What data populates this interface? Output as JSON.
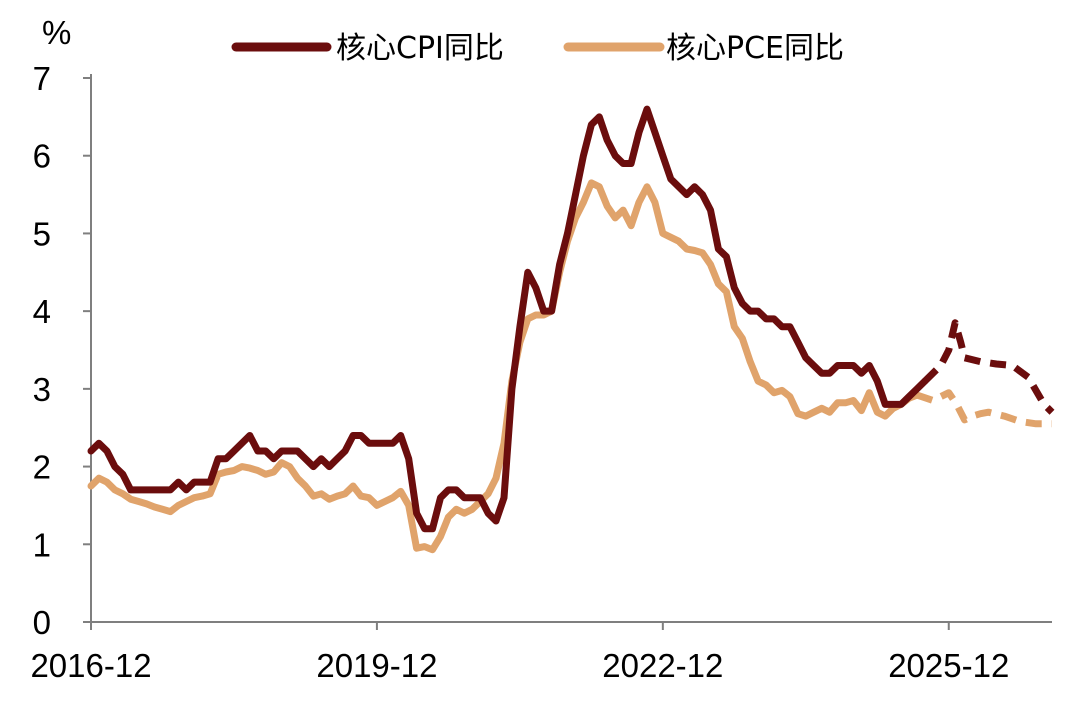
{
  "chart_data": {
    "type": "line",
    "unit_label": "%",
    "ylim": [
      0,
      7
    ],
    "y_ticks": [
      0,
      1,
      2,
      3,
      4,
      5,
      6,
      7
    ],
    "x_tick_labels": [
      "2016-12",
      "2019-12",
      "2022-12",
      "2025-12"
    ],
    "x_tick_months": [
      0,
      36,
      72,
      108
    ],
    "x_range_months": [
      0,
      121
    ],
    "legend_position": "top",
    "series": [
      {
        "name": "核心CPI同比",
        "color": "#6b0d0d",
        "actual": [
          [
            0,
            2.2
          ],
          [
            1,
            2.3
          ],
          [
            2,
            2.2
          ],
          [
            3,
            2.0
          ],
          [
            4,
            1.9
          ],
          [
            5,
            1.7
          ],
          [
            6,
            1.7
          ],
          [
            7,
            1.7
          ],
          [
            8,
            1.7
          ],
          [
            9,
            1.7
          ],
          [
            10,
            1.7
          ],
          [
            11,
            1.8
          ],
          [
            12,
            1.7
          ],
          [
            13,
            1.8
          ],
          [
            14,
            1.8
          ],
          [
            15,
            1.8
          ],
          [
            16,
            2.1
          ],
          [
            17,
            2.1
          ],
          [
            18,
            2.2
          ],
          [
            19,
            2.3
          ],
          [
            20,
            2.4
          ],
          [
            21,
            2.2
          ],
          [
            22,
            2.2
          ],
          [
            23,
            2.1
          ],
          [
            24,
            2.2
          ],
          [
            25,
            2.2
          ],
          [
            26,
            2.2
          ],
          [
            27,
            2.1
          ],
          [
            28,
            2.0
          ],
          [
            29,
            2.1
          ],
          [
            30,
            2.0
          ],
          [
            31,
            2.1
          ],
          [
            32,
            2.2
          ],
          [
            33,
            2.4
          ],
          [
            34,
            2.4
          ],
          [
            35,
            2.3
          ],
          [
            36,
            2.3
          ],
          [
            37,
            2.3
          ],
          [
            38,
            2.3
          ],
          [
            39,
            2.4
          ],
          [
            40,
            2.1
          ],
          [
            41,
            1.4
          ],
          [
            42,
            1.2
          ],
          [
            43,
            1.2
          ],
          [
            44,
            1.6
          ],
          [
            45,
            1.7
          ],
          [
            46,
            1.7
          ],
          [
            47,
            1.6
          ],
          [
            48,
            1.6
          ],
          [
            49,
            1.6
          ],
          [
            50,
            1.4
          ],
          [
            51,
            1.3
          ],
          [
            52,
            1.6
          ],
          [
            53,
            3.0
          ],
          [
            54,
            3.8
          ],
          [
            55,
            4.5
          ],
          [
            56,
            4.3
          ],
          [
            57,
            4.0
          ],
          [
            58,
            4.0
          ],
          [
            59,
            4.6
          ],
          [
            60,
            5.0
          ],
          [
            61,
            5.5
          ],
          [
            62,
            6.0
          ],
          [
            63,
            6.4
          ],
          [
            64,
            6.5
          ],
          [
            65,
            6.2
          ],
          [
            66,
            6.0
          ],
          [
            67,
            5.9
          ],
          [
            68,
            5.9
          ],
          [
            69,
            6.3
          ],
          [
            70,
            6.6
          ],
          [
            71,
            6.3
          ],
          [
            72,
            6.0
          ],
          [
            73,
            5.7
          ],
          [
            74,
            5.6
          ],
          [
            75,
            5.5
          ],
          [
            76,
            5.6
          ],
          [
            77,
            5.5
          ],
          [
            78,
            5.3
          ],
          [
            79,
            4.8
          ],
          [
            80,
            4.7
          ],
          [
            81,
            4.3
          ],
          [
            82,
            4.1
          ],
          [
            83,
            4.0
          ],
          [
            84,
            4.0
          ],
          [
            85,
            3.9
          ],
          [
            86,
            3.9
          ],
          [
            87,
            3.8
          ],
          [
            88,
            3.8
          ],
          [
            89,
            3.6
          ],
          [
            90,
            3.4
          ],
          [
            91,
            3.3
          ],
          [
            92,
            3.2
          ],
          [
            93,
            3.2
          ],
          [
            94,
            3.3
          ],
          [
            95,
            3.3
          ],
          [
            96,
            3.3
          ],
          [
            97,
            3.2
          ],
          [
            98,
            3.3
          ],
          [
            99,
            3.1
          ],
          [
            100,
            2.8
          ],
          [
            101,
            2.8
          ],
          [
            102,
            2.8
          ],
          [
            103,
            2.9
          ],
          [
            104,
            3.0
          ],
          [
            105,
            3.1
          ]
        ],
        "forecast": [
          [
            105,
            3.1
          ],
          [
            106,
            3.2
          ],
          [
            107,
            3.3
          ],
          [
            108,
            3.5
          ],
          [
            108.8,
            3.85
          ],
          [
            109.5,
            3.6
          ],
          [
            110,
            3.4
          ],
          [
            112,
            3.35
          ],
          [
            114,
            3.32
          ],
          [
            116,
            3.3
          ],
          [
            118,
            3.15
          ],
          [
            120,
            2.8
          ],
          [
            121,
            2.7
          ]
        ]
      },
      {
        "name": "核心PCE同比",
        "color": "#e0a36b",
        "actual": [
          [
            0,
            1.75
          ],
          [
            1,
            1.85
          ],
          [
            2,
            1.8
          ],
          [
            3,
            1.7
          ],
          [
            4,
            1.65
          ],
          [
            5,
            1.58
          ],
          [
            6,
            1.55
          ],
          [
            7,
            1.52
          ],
          [
            8,
            1.48
          ],
          [
            9,
            1.45
          ],
          [
            10,
            1.42
          ],
          [
            11,
            1.5
          ],
          [
            12,
            1.55
          ],
          [
            13,
            1.6
          ],
          [
            14,
            1.62
          ],
          [
            15,
            1.65
          ],
          [
            16,
            1.9
          ],
          [
            17,
            1.93
          ],
          [
            18,
            1.95
          ],
          [
            19,
            2.0
          ],
          [
            20,
            1.98
          ],
          [
            21,
            1.95
          ],
          [
            22,
            1.9
          ],
          [
            23,
            1.93
          ],
          [
            24,
            2.05
          ],
          [
            25,
            2.0
          ],
          [
            26,
            1.85
          ],
          [
            27,
            1.75
          ],
          [
            28,
            1.62
          ],
          [
            29,
            1.65
          ],
          [
            30,
            1.58
          ],
          [
            31,
            1.62
          ],
          [
            32,
            1.65
          ],
          [
            33,
            1.75
          ],
          [
            34,
            1.62
          ],
          [
            35,
            1.6
          ],
          [
            36,
            1.5
          ],
          [
            37,
            1.55
          ],
          [
            38,
            1.6
          ],
          [
            39,
            1.68
          ],
          [
            40,
            1.5
          ],
          [
            41,
            0.95
          ],
          [
            42,
            0.97
          ],
          [
            43,
            0.93
          ],
          [
            44,
            1.1
          ],
          [
            45,
            1.35
          ],
          [
            46,
            1.45
          ],
          [
            47,
            1.4
          ],
          [
            48,
            1.45
          ],
          [
            49,
            1.55
          ],
          [
            50,
            1.65
          ],
          [
            51,
            1.85
          ],
          [
            52,
            2.3
          ],
          [
            53,
            3.1
          ],
          [
            54,
            3.6
          ],
          [
            55,
            3.9
          ],
          [
            56,
            3.95
          ],
          [
            57,
            3.95
          ],
          [
            58,
            4.0
          ],
          [
            59,
            4.5
          ],
          [
            60,
            4.9
          ],
          [
            61,
            5.2
          ],
          [
            62,
            5.4
          ],
          [
            63,
            5.65
          ],
          [
            64,
            5.6
          ],
          [
            65,
            5.35
          ],
          [
            66,
            5.2
          ],
          [
            67,
            5.3
          ],
          [
            68,
            5.1
          ],
          [
            69,
            5.4
          ],
          [
            70,
            5.6
          ],
          [
            71,
            5.4
          ],
          [
            72,
            5.0
          ],
          [
            73,
            4.95
          ],
          [
            74,
            4.9
          ],
          [
            75,
            4.8
          ],
          [
            76,
            4.78
          ],
          [
            77,
            4.75
          ],
          [
            78,
            4.6
          ],
          [
            79,
            4.35
          ],
          [
            80,
            4.25
          ],
          [
            81,
            3.8
          ],
          [
            82,
            3.65
          ],
          [
            83,
            3.35
          ],
          [
            84,
            3.1
          ],
          [
            85,
            3.05
          ],
          [
            86,
            2.95
          ],
          [
            87,
            2.98
          ],
          [
            88,
            2.9
          ],
          [
            89,
            2.68
          ],
          [
            90,
            2.65
          ],
          [
            91,
            2.7
          ],
          [
            92,
            2.75
          ],
          [
            93,
            2.7
          ],
          [
            94,
            2.82
          ],
          [
            95,
            2.82
          ],
          [
            96,
            2.85
          ],
          [
            97,
            2.72
          ],
          [
            98,
            2.95
          ],
          [
            99,
            2.7
          ],
          [
            100,
            2.65
          ],
          [
            101,
            2.75
          ],
          [
            102,
            2.8
          ],
          [
            103,
            2.88
          ],
          [
            104,
            2.92
          ]
        ],
        "forecast": [
          [
            104,
            2.92
          ],
          [
            106,
            2.85
          ],
          [
            107,
            2.9
          ],
          [
            108,
            2.95
          ],
          [
            109,
            2.8
          ],
          [
            110,
            2.6
          ],
          [
            111,
            2.65
          ],
          [
            112,
            2.68
          ],
          [
            113,
            2.7
          ],
          [
            115,
            2.65
          ],
          [
            117,
            2.58
          ],
          [
            119,
            2.55
          ],
          [
            121,
            2.55
          ]
        ]
      }
    ]
  }
}
